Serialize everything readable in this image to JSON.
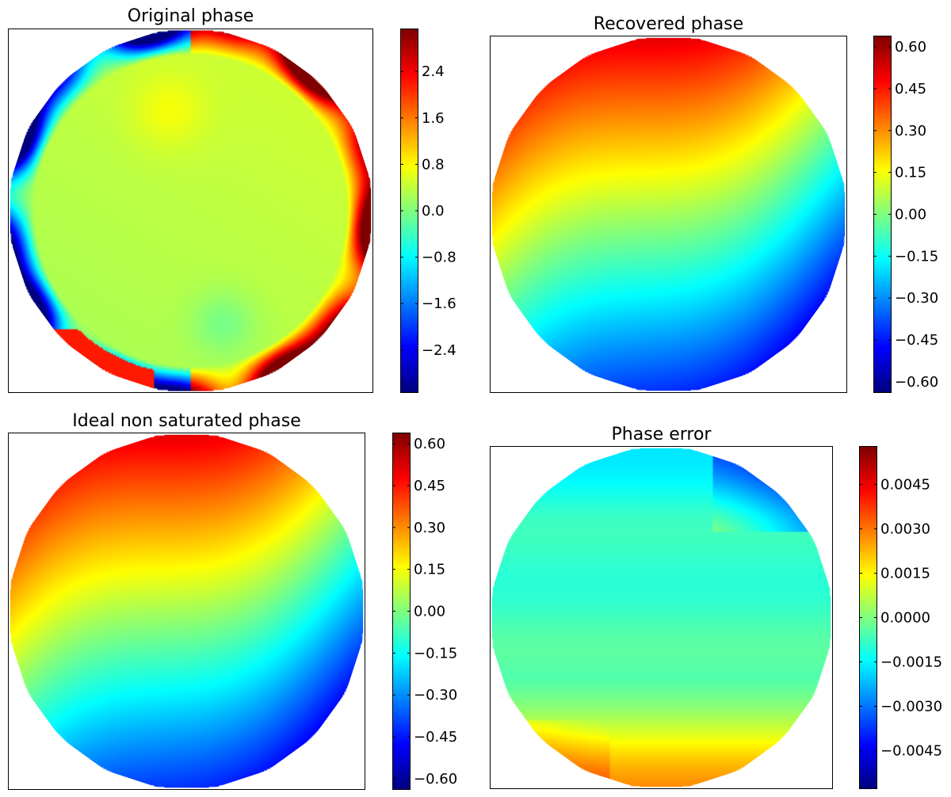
{
  "figure": {
    "background": "#ffffff"
  },
  "colormap": {
    "name": "jet",
    "stops": [
      "#00007f",
      "#0000ff",
      "#007fff",
      "#00ffff",
      "#7fff7f",
      "#ffff00",
      "#ff7f00",
      "#ff0000",
      "#7f0000"
    ]
  },
  "chart_data": [
    {
      "type": "heatmap",
      "title": "Original phase",
      "aperture": "circular",
      "pattern": "wrapped",
      "clim": [
        -3.14,
        3.14
      ],
      "colorbar_ticks": [
        2.4,
        1.6,
        0.8,
        0.0,
        -0.8,
        -1.6,
        -2.4
      ],
      "colorbar_tick_labels": [
        "2.4",
        "1.6",
        "0.8",
        "0.0",
        "−0.8",
        "−1.6",
        "−2.4"
      ]
    },
    {
      "type": "heatmap",
      "title": "Recovered phase",
      "aperture": "circular",
      "pattern": "tilt",
      "clim": [
        -0.64,
        0.64
      ],
      "colorbar_ticks": [
        0.6,
        0.45,
        0.3,
        0.15,
        0.0,
        -0.15,
        -0.3,
        -0.45,
        -0.6
      ],
      "colorbar_tick_labels": [
        "0.60",
        "0.45",
        "0.30",
        "0.15",
        "0.00",
        "−0.15",
        "−0.30",
        "−0.45",
        "−0.60"
      ]
    },
    {
      "type": "heatmap",
      "title": "Ideal non saturated phase",
      "aperture": "circular",
      "pattern": "tilt",
      "clim": [
        -0.64,
        0.64
      ],
      "colorbar_ticks": [
        0.6,
        0.45,
        0.3,
        0.15,
        0.0,
        -0.15,
        -0.3,
        -0.45,
        -0.6
      ],
      "colorbar_tick_labels": [
        "0.60",
        "0.45",
        "0.30",
        "0.15",
        "0.00",
        "−0.15",
        "−0.30",
        "−0.45",
        "−0.60"
      ]
    },
    {
      "type": "heatmap",
      "title": "Phase error",
      "aperture": "circular",
      "pattern": "error",
      "clim": [
        -0.0058,
        0.0058
      ],
      "colorbar_ticks": [
        0.0045,
        0.003,
        0.0015,
        0.0,
        -0.0015,
        -0.003,
        -0.0045
      ],
      "colorbar_tick_labels": [
        "0.0045",
        "0.0030",
        "0.0015",
        "0.0000",
        "−0.0015",
        "−0.0030",
        "−0.0045"
      ]
    }
  ]
}
